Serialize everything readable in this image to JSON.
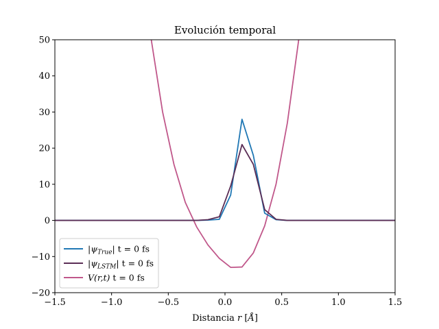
{
  "chart_data": {
    "type": "line",
    "title": "Evolución temporal",
    "xlabel": "Distancia r [Å]",
    "ylabel": "",
    "xlim": [
      -1.5,
      1.5
    ],
    "ylim": [
      -20,
      50
    ],
    "xticks": [
      "−1.5",
      "−1.0",
      "−0.5",
      "0.0",
      "0.5",
      "1.0",
      "1.5"
    ],
    "xtick_values": [
      -1.5,
      -1.0,
      -0.5,
      0.0,
      0.5,
      1.0,
      1.5
    ],
    "yticks": [
      "−20",
      "−10",
      "0",
      "10",
      "20",
      "30",
      "40",
      "50"
    ],
    "ytick_values": [
      -20,
      -10,
      0,
      10,
      20,
      30,
      40,
      50
    ],
    "grid": false,
    "legend_position": "lower-left",
    "series": [
      {
        "name": "|ψTrue| t = 0 fs",
        "color": "#1f77b4",
        "x": [
          -1.5,
          -1.0,
          -0.5,
          -0.25,
          -0.15,
          -0.05,
          0.05,
          0.15,
          0.25,
          0.35,
          0.45,
          0.55,
          1.0,
          1.5
        ],
        "y": [
          0,
          0,
          0,
          0,
          0.1,
          0.3,
          7,
          28,
          18,
          2,
          0.2,
          0,
          0,
          0
        ]
      },
      {
        "name": "|ψLSTM| t = 0 fs",
        "color": "#5a2d55",
        "x": [
          -1.5,
          -1.0,
          -0.5,
          -0.25,
          -0.15,
          -0.05,
          0.05,
          0.15,
          0.25,
          0.35,
          0.45,
          0.55,
          1.0,
          1.5
        ],
        "y": [
          0,
          0,
          0,
          0,
          0.2,
          1,
          9.5,
          21,
          15.5,
          3,
          0.3,
          0,
          0,
          0
        ]
      },
      {
        "name": "V(r,t) t = 0 fs",
        "color": "#c0578a",
        "x": [
          -0.65,
          -0.55,
          -0.45,
          -0.35,
          -0.25,
          -0.15,
          -0.05,
          0.05,
          0.15,
          0.25,
          0.35,
          0.45,
          0.55,
          0.65
        ],
        "y": [
          50,
          30,
          15.5,
          5,
          -1.8,
          -6.8,
          -10.5,
          -13,
          -12.9,
          -9,
          -1.5,
          10,
          27,
          50
        ]
      }
    ]
  },
  "legend": {
    "items": [
      {
        "prefix": "|ψ",
        "sub": "True",
        "suffix": "| t = 0 fs"
      },
      {
        "prefix": "|ψ",
        "sub": "LSTM",
        "suffix": "| t = 0 fs"
      },
      {
        "prefix": "V(r,t)",
        "sub": "",
        "suffix": " t = 0 fs"
      }
    ]
  }
}
